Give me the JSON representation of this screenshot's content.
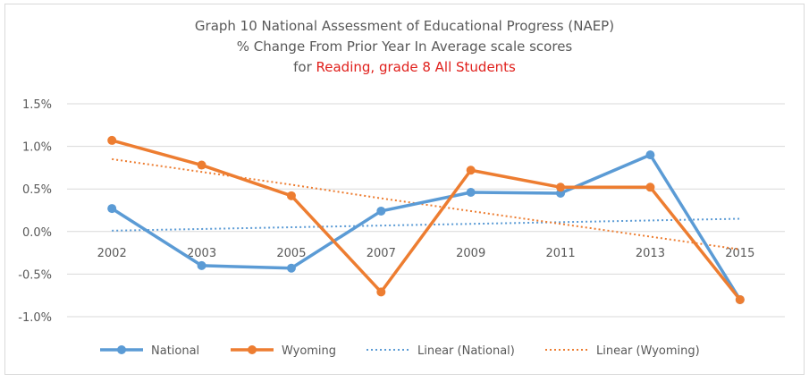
{
  "chart_data": {
    "type": "line",
    "title": {
      "line1": "Graph 10 National Assessment of Educational Progress (NAEP)",
      "line2": "% Change From Prior Year In Average scale scores",
      "line3_prefix": "for ",
      "line3_highlight": "Reading, grade 8 All Students"
    },
    "categories": [
      "2002",
      "2003",
      "2005",
      "2007",
      "2009",
      "2011",
      "2013",
      "2015"
    ],
    "ylim": [
      -1.0,
      1.5
    ],
    "yticks": [
      1.5,
      1.0,
      0.5,
      0.0,
      -0.5,
      -1.0
    ],
    "ytick_labels": [
      "1.5%",
      "1.0%",
      "0.5%",
      "0.0%",
      "-0.5%",
      "-1.0%"
    ],
    "grid": true,
    "legend_position": "bottom",
    "series": [
      {
        "name": "National",
        "color": "#5b9bd5",
        "values": [
          0.27,
          -0.4,
          -0.43,
          0.24,
          0.46,
          0.45,
          0.9,
          -0.8
        ]
      },
      {
        "name": "Wyoming",
        "color": "#ed7d31",
        "values": [
          1.07,
          0.78,
          0.42,
          -0.71,
          0.72,
          0.52,
          0.52,
          -0.8
        ]
      }
    ],
    "trendlines": [
      {
        "name": "Linear (National)",
        "color": "#5b9bd5",
        "values": [
          0.01,
          0.03,
          0.05,
          0.07,
          0.09,
          0.11,
          0.13,
          0.15
        ]
      },
      {
        "name": "Linear (Wyoming)",
        "color": "#ed7d31",
        "values": [
          0.85,
          0.7,
          0.55,
          0.39,
          0.24,
          0.09,
          -0.06,
          -0.21
        ]
      }
    ]
  }
}
